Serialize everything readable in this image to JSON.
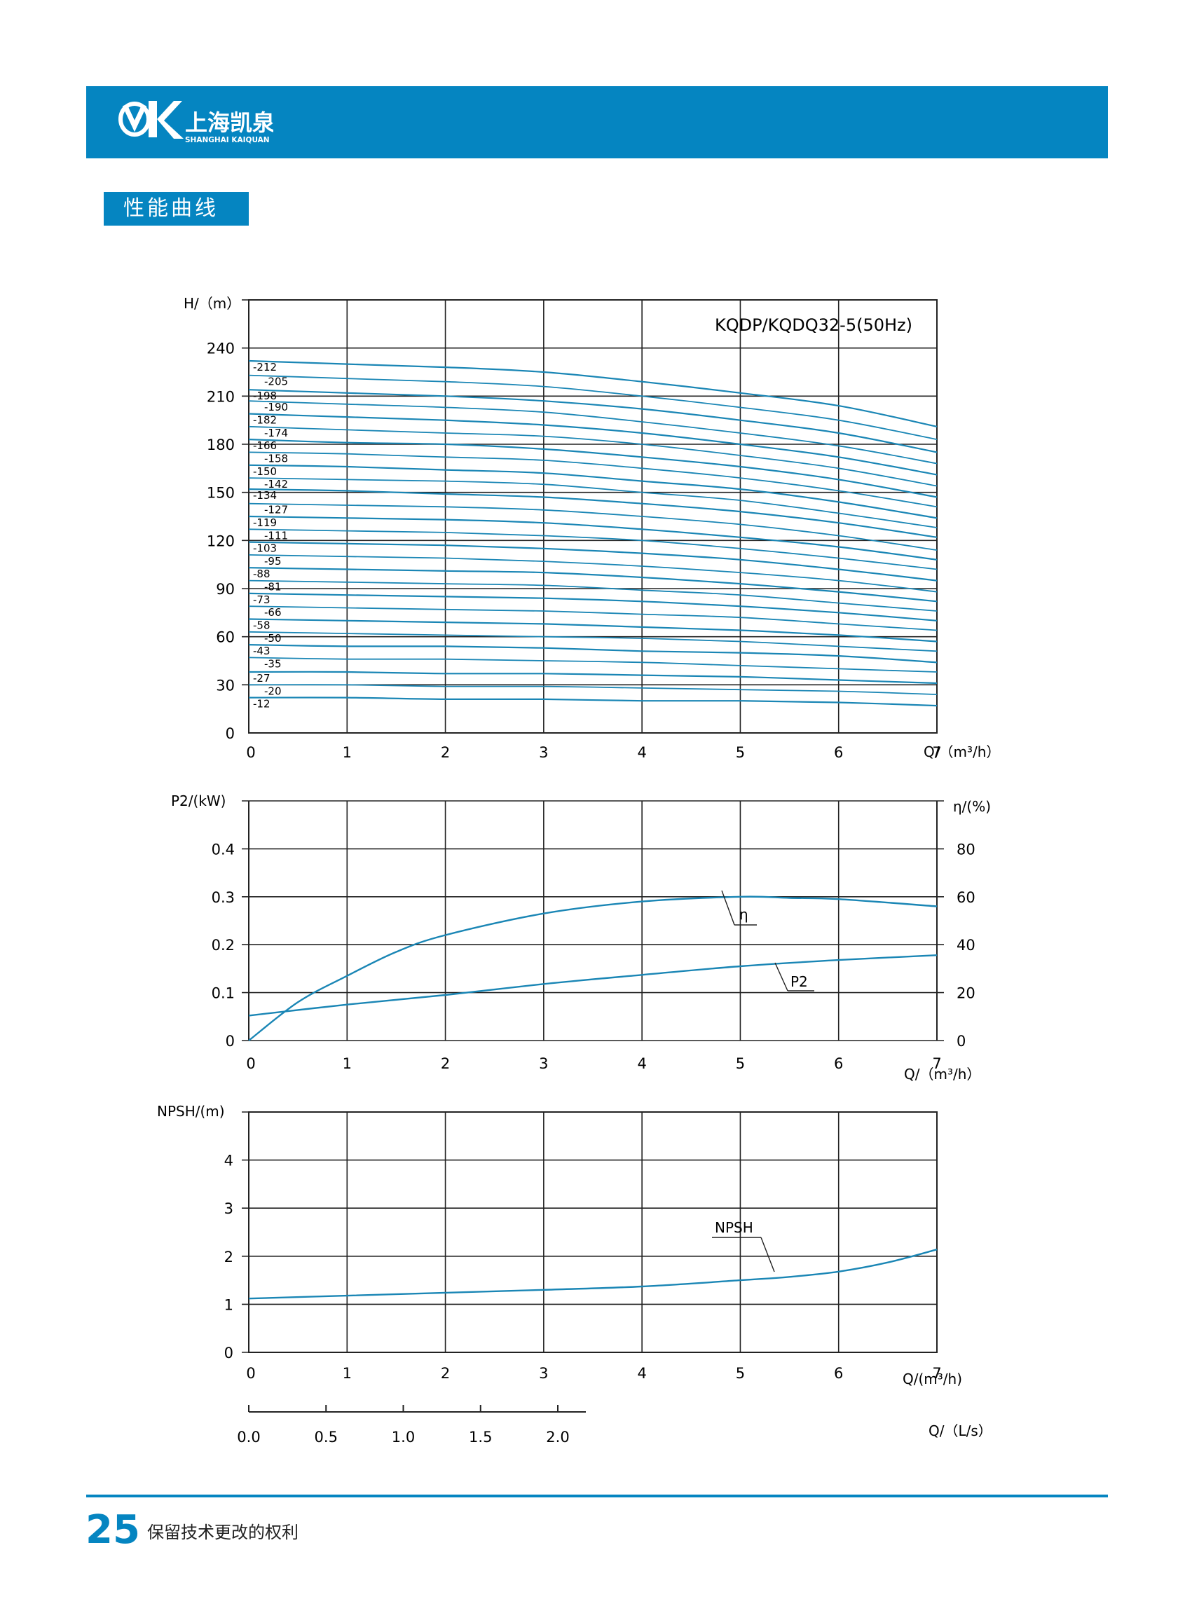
{
  "header": {
    "brand_cn": "上海凯泉",
    "brand_en": "SHANGHAI KAIQUAN",
    "accent": "#0585c1"
  },
  "section": {
    "title": "性能曲线"
  },
  "footer": {
    "page_number": "25",
    "note": "保留技术更改的权利"
  },
  "chart_data": [
    {
      "type": "line",
      "title": "KQDP/KQDQ32-5(50Hz)",
      "ylabel": "H/（m）",
      "xlabel": "Q/（m³/h）",
      "xlim": [
        0,
        7
      ],
      "ylim": [
        0,
        270
      ],
      "x_ticks": [
        "0",
        "1",
        "2",
        "3",
        "4",
        "5",
        "6",
        "7"
      ],
      "y_ticks": [
        "0",
        "30",
        "60",
        "90",
        "120",
        "150",
        "180",
        "210",
        "240"
      ],
      "grid": true,
      "line_color": "#1a86b5",
      "stage_labels": [
        "-212",
        "-205",
        "-198",
        "-190",
        "-182",
        "-174",
        "-166",
        "-158",
        "-150",
        "-142",
        "-134",
        "-127",
        "-119",
        "-111",
        "-103",
        "-95",
        "-88",
        "-81",
        "-73",
        "-66",
        "-58",
        "-50",
        "-43",
        "-35",
        "-27",
        "-20",
        "-12"
      ],
      "curve_x": [
        0,
        1,
        2,
        3,
        4,
        5,
        6,
        7
      ],
      "curves": [
        [
          232,
          230,
          228,
          225,
          219,
          212,
          204,
          191
        ],
        [
          223,
          221,
          219,
          216,
          210,
          203,
          195,
          183
        ],
        [
          214,
          212,
          210,
          207,
          202,
          195,
          187,
          175
        ],
        [
          207,
          205,
          203,
          200,
          194,
          187,
          179,
          168
        ],
        [
          199,
          197,
          195,
          192,
          187,
          180,
          172,
          161
        ],
        [
          191,
          189,
          187,
          185,
          180,
          173,
          165,
          154
        ],
        [
          183,
          181,
          180,
          177,
          172,
          166,
          158,
          147
        ],
        [
          175,
          174,
          172,
          170,
          165,
          159,
          151,
          141
        ],
        [
          167,
          166,
          164,
          162,
          157,
          152,
          144,
          134
        ],
        [
          159,
          158,
          157,
          155,
          150,
          145,
          137,
          128
        ],
        [
          152,
          151,
          149,
          147,
          143,
          138,
          131,
          122
        ],
        [
          143,
          142,
          141,
          139,
          135,
          130,
          123,
          114
        ],
        [
          135,
          134,
          133,
          131,
          127,
          122,
          116,
          108
        ],
        [
          127,
          126,
          125,
          123,
          120,
          115,
          109,
          102
        ],
        [
          119,
          118,
          117,
          115,
          112,
          108,
          102,
          95
        ],
        [
          111,
          110,
          109,
          107,
          104,
          100,
          95,
          88
        ],
        [
          103,
          102,
          101,
          100,
          97,
          93,
          88,
          82
        ],
        [
          95,
          94,
          93,
          92,
          89,
          86,
          81,
          76
        ],
        [
          87,
          86,
          85,
          84,
          82,
          79,
          75,
          70
        ],
        [
          79,
          78,
          77,
          76,
          74,
          72,
          68,
          64
        ],
        [
          71,
          70,
          69,
          68,
          66,
          64,
          61,
          57
        ],
        [
          63,
          62,
          61,
          60,
          59,
          57,
          54,
          51
        ],
        [
          55,
          54,
          54,
          53,
          51,
          50,
          48,
          44
        ],
        [
          47,
          46,
          46,
          45,
          44,
          42,
          40,
          38
        ],
        [
          38,
          38,
          37,
          37,
          36,
          35,
          33,
          31
        ],
        [
          30,
          30,
          29,
          29,
          28,
          27,
          26,
          24
        ],
        [
          22,
          22,
          21,
          21,
          20,
          20,
          19,
          17
        ]
      ]
    },
    {
      "type": "line",
      "ylabel": "P2/(kW)",
      "y2label": "η/(%)",
      "xlabel": "Q/（m³/h）",
      "xlim": [
        0,
        7
      ],
      "ylim": [
        0,
        0.5
      ],
      "y2lim": [
        0,
        100
      ],
      "x_ticks": [
        "0",
        "1",
        "2",
        "3",
        "4",
        "5",
        "6",
        "7"
      ],
      "y_ticks": [
        "0",
        "0.1",
        "0.2",
        "0.3",
        "0.4"
      ],
      "y2_ticks": [
        "0",
        "20",
        "40",
        "60",
        "80"
      ],
      "grid": true,
      "series": [
        {
          "name": "η",
          "axis": "right",
          "x": [
            0,
            0.5,
            1,
            1.5,
            2,
            3,
            4,
            5,
            5.5,
            6,
            7
          ],
          "values": [
            0,
            16,
            27,
            37,
            44,
            53,
            58,
            60,
            59.5,
            59,
            56
          ]
        },
        {
          "name": "P2",
          "axis": "left",
          "x": [
            0,
            1,
            2,
            3,
            4,
            5,
            6,
            7
          ],
          "values": [
            0.052,
            0.075,
            0.095,
            0.118,
            0.137,
            0.155,
            0.168,
            0.178
          ]
        }
      ]
    },
    {
      "type": "line",
      "ylabel": "NPSH/(m)",
      "xlabel": "Q/(m³/h)",
      "x2label": "Q/（L/s）",
      "xlim": [
        0,
        7
      ],
      "ylim": [
        0,
        5
      ],
      "x_ticks": [
        "0",
        "1",
        "2",
        "3",
        "4",
        "5",
        "6",
        "7"
      ],
      "x2_ticks": [
        "0.0",
        "0.5",
        "1.0",
        "1.5",
        "2.0"
      ],
      "x2_values": [
        0,
        0.5,
        1.0,
        1.5,
        2.0
      ],
      "y_ticks": [
        "0",
        "1",
        "2",
        "3",
        "4"
      ],
      "grid": true,
      "series": [
        {
          "name": "NPSH",
          "x": [
            0,
            1,
            2,
            3,
            4,
            5,
            5.5,
            6,
            6.5,
            7
          ],
          "values": [
            1.12,
            1.18,
            1.24,
            1.3,
            1.37,
            1.5,
            1.57,
            1.68,
            1.87,
            2.14
          ]
        }
      ]
    }
  ]
}
